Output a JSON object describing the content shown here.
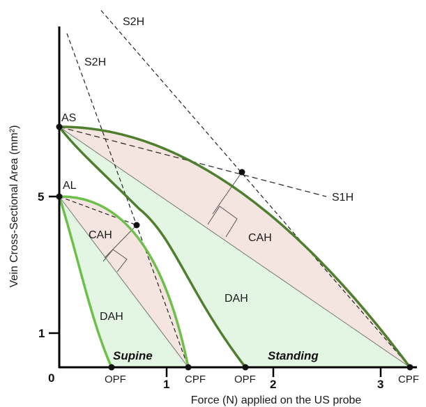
{
  "axes": {
    "xlabel": "Force (N) applied on the US probe",
    "ylabel": "Vein Cross-Sectional Area (mm²)",
    "origin_label": "0",
    "x_ticks": [
      "1",
      "2",
      "3"
    ],
    "y_ticks": [
      "1",
      "5"
    ]
  },
  "labels": {
    "as": "AS",
    "al": "AL",
    "s2h_top": "S2H",
    "s2h_left": "S2H",
    "s1h": "S1H",
    "cah_supine": "CAH",
    "dah_supine": "DAH",
    "cah_standing": "CAH",
    "dah_standing": "DAH",
    "supine": "Supine",
    "standing": "Standing",
    "opf_supine": "OPF",
    "cpf_supine": "CPF",
    "opf_standing": "OPF",
    "cpf_standing": "CPF"
  },
  "colors": {
    "curve": "#4f7f2e",
    "curve_light": "#6cc04a",
    "cah_fill": "#f5e5e0",
    "dah_fill": "#e3f6e3",
    "axis": "#000000"
  }
}
